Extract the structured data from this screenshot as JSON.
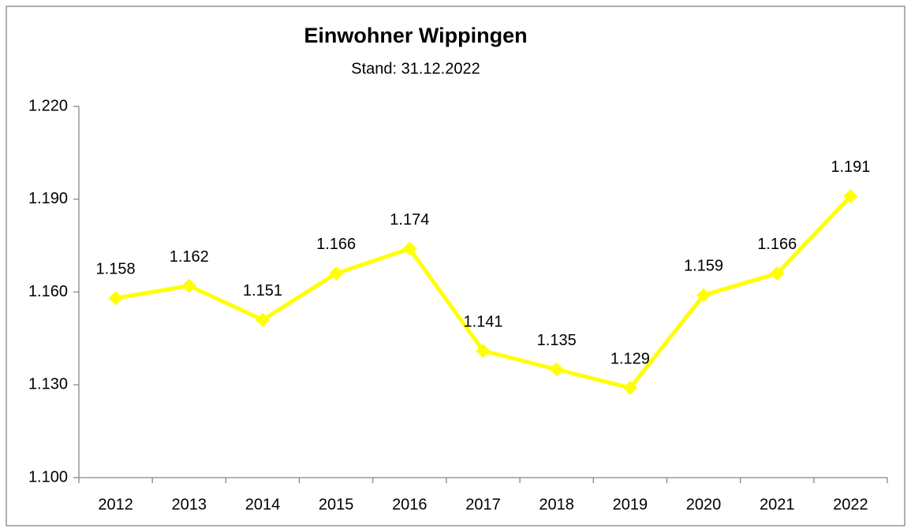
{
  "chart_data": {
    "type": "line",
    "title": "Einwohner Wippingen",
    "subtitle": "Stand: 31.12.2022",
    "categories": [
      "2012",
      "2013",
      "2014",
      "2015",
      "2016",
      "2017",
      "2018",
      "2019",
      "2020",
      "2021",
      "2022"
    ],
    "values": [
      1158,
      1162,
      1151,
      1166,
      1174,
      1141,
      1135,
      1129,
      1159,
      1166,
      1191
    ],
    "value_labels": [
      "1.158",
      "1.162",
      "1.151",
      "1.166",
      "1.174",
      "1.141",
      "1.135",
      "1.129",
      "1.159",
      "1.166",
      "1.191"
    ],
    "color": "#ffff00",
    "ylim": [
      1100,
      1220
    ],
    "yticks": [
      {
        "value": 1100,
        "label": "1.100"
      },
      {
        "value": 1130,
        "label": "1.130"
      },
      {
        "value": 1160,
        "label": "1.160"
      },
      {
        "value": 1190,
        "label": "1.190"
      },
      {
        "value": 1220,
        "label": "1.220"
      }
    ],
    "grid": false
  }
}
